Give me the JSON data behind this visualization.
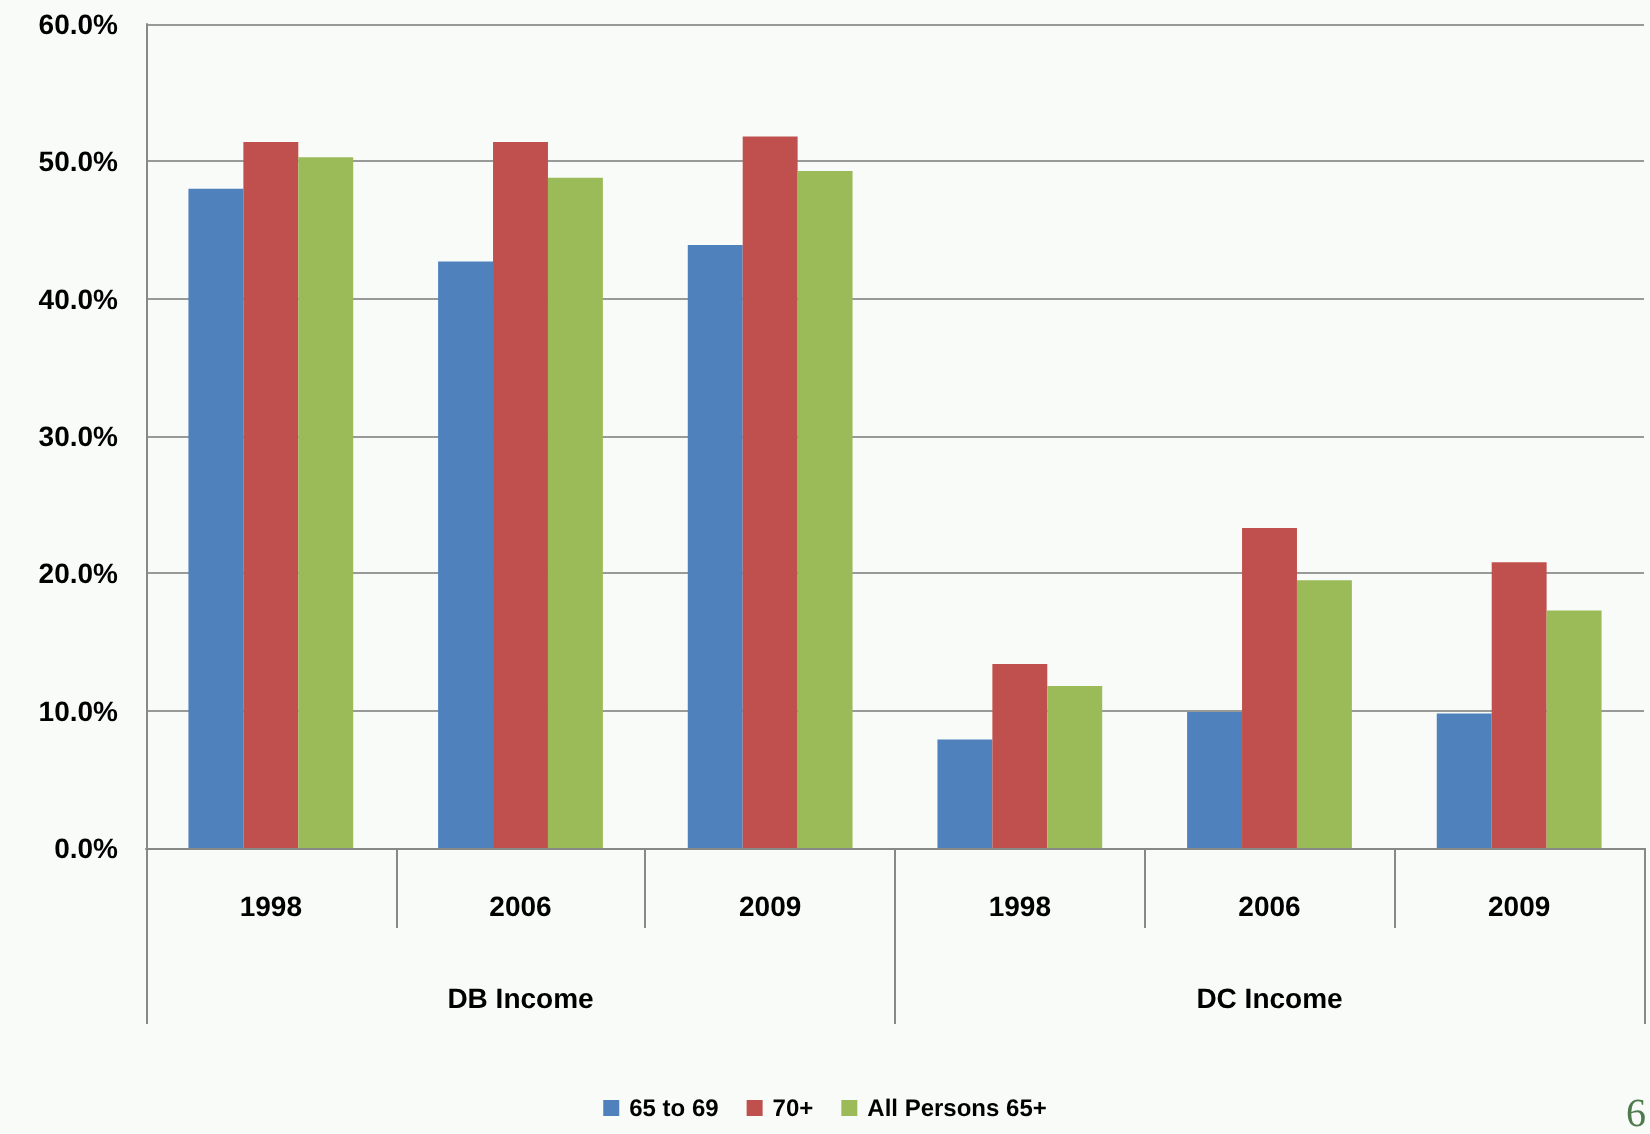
{
  "chart_data": {
    "type": "bar",
    "categories": [
      "1998",
      "2006",
      "2009",
      "1998",
      "2006",
      "2009"
    ],
    "series": [
      {
        "name": "65 to 69",
        "color": "#4f81bd",
        "values": [
          48.0,
          42.7,
          43.9,
          7.9,
          9.9,
          9.8
        ]
      },
      {
        "name": "70+",
        "color": "#c0504d",
        "values": [
          51.4,
          51.4,
          51.8,
          13.4,
          23.3,
          20.8
        ]
      },
      {
        "name": "All Persons 65+",
        "color": "#9bbb59",
        "values": [
          50.3,
          48.8,
          49.3,
          11.8,
          19.5,
          17.3
        ]
      }
    ],
    "ylim": [
      0,
      60
    ],
    "yticks": [
      {
        "value": 0,
        "label": "0.0%"
      },
      {
        "value": 10,
        "label": "10.0%"
      },
      {
        "value": 20,
        "label": "20.0%"
      },
      {
        "value": 30,
        "label": "30.0%"
      },
      {
        "value": 40,
        "label": "40.0%"
      },
      {
        "value": 50,
        "label": "50.0%"
      },
      {
        "value": 60,
        "label": "60.0%"
      }
    ],
    "grid": "y",
    "legend": "bottom",
    "annotations": [
      "DB Income",
      "DC Income",
      "6"
    ]
  }
}
